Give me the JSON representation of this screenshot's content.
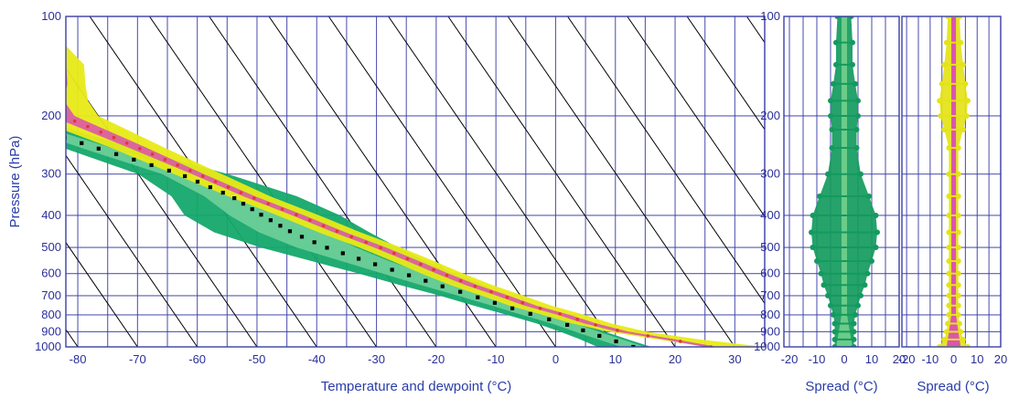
{
  "chart_data": [
    {
      "type": "line",
      "subtype": "skew-T log-P ensemble sounding",
      "xlabel": "Temperature and dewpoint (°C)",
      "ylabel": "Pressure (hPa)",
      "xlim": [
        -82,
        35
      ],
      "ylim": [
        1000,
        100
      ],
      "y_scale": "log",
      "x_ticks": [
        -80,
        -70,
        -60,
        -50,
        -40,
        -30,
        -20,
        -10,
        0,
        10,
        20,
        30
      ],
      "y_ticks": [
        100,
        200,
        300,
        400,
        500,
        600,
        700,
        800,
        900,
        1000
      ],
      "grid": true,
      "isotherm_spacing": 5,
      "colors": {
        "frame": "#3b3fa6",
        "grid": "#3b3fa6",
        "temperature_spread": "#e8ea16",
        "temperature_band": "#d94fb2",
        "dewpoint_spread": "#14a86a",
        "dewpoint_band": "#6fcf9a",
        "mean_profile": "#000000",
        "temperature_points": "#e8333b"
      },
      "series": [
        {
          "pressure": [
            1000,
            950,
            900,
            850,
            800,
            750,
            700,
            650,
            600,
            550,
            500,
            450,
            400,
            350,
            300,
            250,
            200,
            180,
            160,
            140,
            120,
            100
          ],
          "temperature": [
            26,
            20,
            13,
            8.5,
            5,
            0.5,
            -3,
            -7,
            -10.5,
            -14,
            -18,
            -23,
            -28,
            -34,
            -40,
            -47,
            -56,
            -56,
            -53,
            -51,
            -52,
            -53
          ],
          "spread_lo": [
            -1,
            -2,
            -2.5,
            -3,
            -3.5,
            -3.5,
            -3.5,
            -3.5,
            -3.5,
            -3.5,
            -3.5,
            -3.5,
            -3.5,
            -3.5,
            -4,
            -4.5,
            -6,
            -6,
            -4.5,
            -4.5,
            -4.5,
            -3
          ],
          "spread_hi": [
            9,
            5,
            4,
            3.5,
            3.5,
            3.5,
            3.5,
            3.5,
            3.5,
            3.5,
            3.5,
            3.5,
            3.5,
            3.5,
            4,
            4.5,
            6,
            6,
            4.5,
            4.5,
            4.5,
            3
          ],
          "band_lo": [
            -1,
            -1,
            -1,
            -1,
            -1,
            -1,
            -1,
            -1,
            -1,
            -1,
            -1,
            -1,
            -1,
            -1,
            -1,
            -1.5,
            -2,
            -2,
            -1.5,
            -1.5,
            -1.5,
            -1
          ],
          "band_hi": [
            1,
            1,
            1,
            1,
            1,
            1,
            1,
            1,
            1,
            1,
            1,
            1,
            1,
            1,
            1,
            1.5,
            2,
            2,
            1.5,
            1.5,
            1.5,
            1
          ]
        },
        {
          "pressure": [
            1000,
            950,
            900,
            850,
            800,
            750,
            700,
            650,
            600,
            550,
            500,
            450,
            400,
            350,
            300,
            250,
            210,
            180,
            165,
            140,
            120,
            100
          ],
          "temperature": [
            13,
            10,
            7,
            4,
            0,
            -4,
            -8,
            -12.5,
            -17,
            -22,
            -27,
            -31,
            -34,
            -37,
            -43,
            -54,
            -64,
            -72,
            -76.5,
            -77,
            -78,
            -79
          ],
          "spread_lo": [
            -6,
            -5,
            -4.5,
            -4.5,
            -4.5,
            -5,
            -5.5,
            -6.5,
            -7.5,
            -9,
            -11,
            -13,
            -13,
            -10,
            -7,
            -5.5,
            -5,
            -4,
            -3,
            -2.5,
            -2.5,
            -2
          ],
          "spread_hi": [
            3,
            3,
            3,
            3.5,
            4,
            5,
            6,
            7.5,
            8.5,
            10,
            12,
            13,
            13,
            11,
            8,
            6,
            5,
            4,
            3,
            2.5,
            2.5,
            2
          ],
          "band_lo": [
            -2,
            -2,
            -2,
            -2,
            -2,
            -2,
            -2.5,
            -3,
            -3.5,
            -4,
            -5,
            -5.5,
            -5.5,
            -4.5,
            -3,
            -2.5,
            -2,
            -2,
            -1.5,
            -1.5,
            -1.5,
            -1
          ],
          "band_hi": [
            2,
            2,
            2,
            2,
            2,
            2,
            2.5,
            3,
            3.5,
            4,
            5,
            5.5,
            5.5,
            4.5,
            3,
            2.5,
            2,
            2,
            1.5,
            1.5,
            1.5,
            1
          ]
        }
      ]
    },
    {
      "type": "line",
      "subtype": "dewpoint ensemble spread",
      "xlabel": "Spread (°C)",
      "xlim": [
        -22,
        20
      ],
      "ylim": [
        1000,
        100
      ],
      "y_scale": "log",
      "x_ticks": [
        -20,
        -10,
        0,
        10,
        20
      ],
      "y_ticks": [
        100,
        200,
        300,
        400,
        500,
        600,
        700,
        800,
        900,
        1000
      ],
      "grid": true,
      "colors": {
        "spread": "#149a5e",
        "core": "#6fcf8a"
      },
      "pressure": [
        1000,
        950,
        900,
        850,
        800,
        750,
        700,
        650,
        600,
        550,
        500,
        450,
        400,
        350,
        300,
        250,
        220,
        200,
        180,
        160,
        140,
        120,
        100
      ],
      "half_width": [
        3.5,
        3.5,
        3.5,
        3.5,
        4,
        5,
        6,
        7.5,
        8.5,
        10,
        11.5,
        12,
        11.5,
        9,
        6,
        4.5,
        4.5,
        5,
        5,
        4,
        3,
        3,
        2.5
      ],
      "core_half_width": [
        3,
        2.5,
        2,
        1.5,
        1,
        1,
        1,
        1,
        1,
        1,
        1,
        1,
        1,
        1,
        1,
        1,
        1,
        1,
        1,
        1,
        1,
        1,
        1
      ]
    },
    {
      "type": "line",
      "subtype": "temperature ensemble spread",
      "xlabel": "Spread (°C)",
      "xlim": [
        -22,
        20
      ],
      "ylim": [
        1000,
        100
      ],
      "y_scale": "log",
      "x_ticks": [
        -20,
        -10,
        0,
        10,
        20
      ],
      "y_ticks": [
        100,
        200,
        300,
        400,
        500,
        600,
        700,
        800,
        900,
        1000
      ],
      "grid": true,
      "colors": {
        "spread": "#e4e318",
        "core": "#d94fb2"
      },
      "pressure": [
        1000,
        950,
        900,
        850,
        800,
        750,
        700,
        650,
        600,
        550,
        500,
        450,
        400,
        350,
        300,
        250,
        220,
        200,
        180,
        160,
        140,
        120,
        100
      ],
      "half_width": [
        6,
        4,
        3,
        2.5,
        2,
        2,
        2,
        2,
        2,
        2,
        2,
        2,
        2,
        2,
        2,
        2,
        4,
        5.5,
        6,
        5,
        4,
        3,
        2.5
      ],
      "core_half_width": [
        3,
        2.5,
        2,
        1.5,
        1,
        1,
        1,
        1,
        1,
        1,
        1,
        1,
        1,
        1,
        1,
        1,
        1,
        1,
        1,
        1,
        1,
        1,
        1
      ]
    }
  ]
}
